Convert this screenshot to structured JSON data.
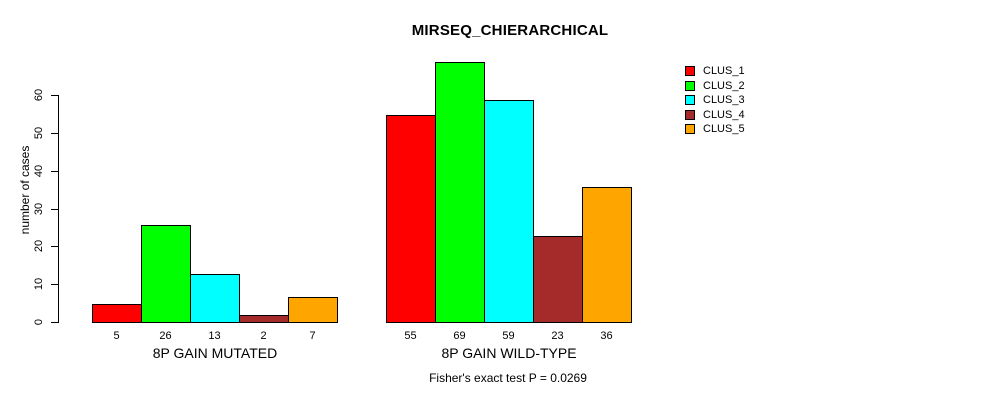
{
  "chart_data": {
    "type": "bar",
    "title": "MIRSEQ_CHIERARCHICAL",
    "ylabel": "number of cases",
    "xlabel": "",
    "ylim": [
      0,
      60
    ],
    "yticks": [
      0,
      10,
      20,
      30,
      40,
      50,
      60
    ],
    "grid": false,
    "legend_position": "top-right",
    "categories": [
      "8P GAIN MUTATED",
      "8P GAIN WILD-TYPE"
    ],
    "series": [
      {
        "name": "CLUS_1",
        "color": "#FF0000",
        "values": [
          5,
          55
        ]
      },
      {
        "name": "CLUS_2",
        "color": "#00FF00",
        "values": [
          26,
          69
        ]
      },
      {
        "name": "CLUS_3",
        "color": "#00FFFF",
        "values": [
          13,
          59
        ]
      },
      {
        "name": "CLUS_4",
        "color": "#A52A2A",
        "values": [
          2,
          23
        ]
      },
      {
        "name": "CLUS_5",
        "color": "#FFA500",
        "values": [
          7,
          36
        ]
      }
    ],
    "bar_labels": [
      [
        "5",
        "26",
        "13",
        "2",
        "7"
      ],
      [
        "55",
        "69",
        "59",
        "23",
        "36"
      ]
    ]
  },
  "footer": {
    "text": "Fisher's exact test P = 0.0269"
  }
}
